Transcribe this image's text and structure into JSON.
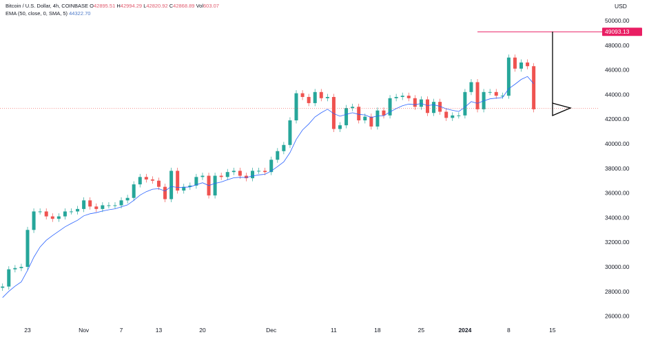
{
  "header": {
    "symbol": "Bitcoin / U.S. Dollar, 4h, COINBASE",
    "open_label": "O",
    "open": "42895.51",
    "high_label": "H",
    "high": "42994.29",
    "low_label": "L",
    "low": "42820.92",
    "close_label": "C",
    "close": "42868.89",
    "vol_label": "Vol",
    "vol": "603.07",
    "indicator": "EMA (50, close, 0, SMA, 5)",
    "indicator_value": "44322.70"
  },
  "colors": {
    "up": "#26a69a",
    "down": "#ef5350",
    "ema": "#2962ff",
    "level": "#e91e63",
    "drawing": "#000000"
  },
  "chart_data": {
    "type": "candlestick",
    "title": "",
    "currency_label": "USD",
    "y_ticks": [
      "50000.00",
      "48000.00",
      "46000.00",
      "44000.00",
      "42000.00",
      "40000.00",
      "38000.00",
      "36000.00",
      "34000.00",
      "32000.00",
      "30000.00",
      "28000.00",
      "26000.00"
    ],
    "ylim": [
      26000,
      50000
    ],
    "x_ticks": [
      {
        "label": "23",
        "date": "2023-10-23"
      },
      {
        "label": "Nov",
        "date": "2023-11-01"
      },
      {
        "label": "7",
        "date": "2023-11-07"
      },
      {
        "label": "13",
        "date": "2023-11-13"
      },
      {
        "label": "20",
        "date": "2023-11-20"
      },
      {
        "label": "Dec",
        "date": "2023-12-01"
      },
      {
        "label": "11",
        "date": "2023-12-11"
      },
      {
        "label": "18",
        "date": "2023-12-18"
      },
      {
        "label": "25",
        "date": "2023-12-25"
      },
      {
        "label": "2024",
        "date": "2024-01-01",
        "bold": true
      },
      {
        "label": "8",
        "date": "2024-01-08"
      },
      {
        "label": "15",
        "date": "2024-01-15"
      }
    ],
    "start_date": "2023-10-19",
    "closes": [
      28400,
      29800,
      29900,
      30000,
      33000,
      34500,
      34500,
      34100,
      33900,
      34100,
      34500,
      34500,
      34700,
      35400,
      34900,
      34700,
      35000,
      35000,
      35000,
      35400,
      35600,
      36700,
      37300,
      37100,
      37000,
      36500,
      35500,
      37800,
      36200,
      36500,
      36600,
      37300,
      37400,
      35800,
      37400,
      37300,
      37700,
      37800,
      37400,
      37200,
      37800,
      37800,
      37700,
      38700,
      39400,
      39900,
      41900,
      44100,
      43800,
      43300,
      44200,
      43700,
      43800,
      41200,
      41500,
      42900,
      43000,
      41900,
      42200,
      41400,
      42700,
      42300,
      43700,
      43800,
      43900,
      43700,
      43000,
      43600,
      42500,
      43400,
      42600,
      42100,
      42300,
      42300,
      44200,
      45000,
      42800,
      44200,
      44200,
      43900,
      43900,
      47000,
      46100,
      46600,
      46300,
      42800
    ],
    "first_open": 28300,
    "current_price": 42868.89,
    "level_line": {
      "value": 49093.13,
      "label": "49093.13",
      "from_date": "2024-01-03"
    },
    "ema_period_note": "EMA 50"
  }
}
